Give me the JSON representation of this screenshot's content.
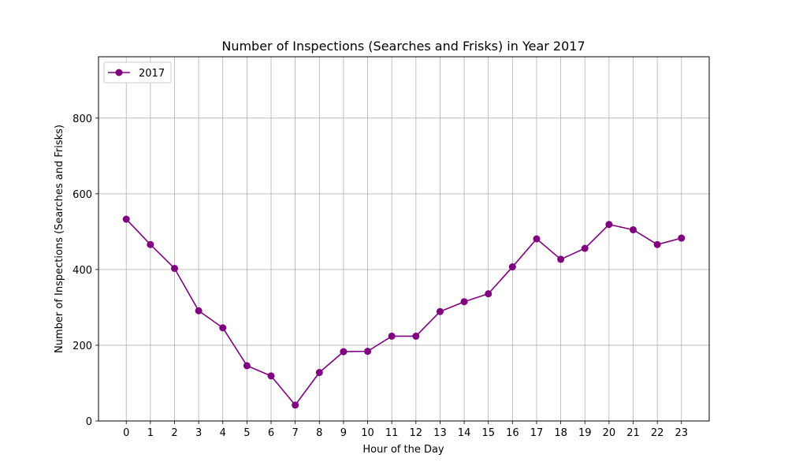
{
  "chart_data": {
    "type": "line",
    "title": "Number of Inspections (Searches and Frisks) in Year 2017",
    "xlabel": "Hour of the Day",
    "ylabel": "Number of Inspections (Searches and Frisks)",
    "x": [
      0,
      1,
      2,
      3,
      4,
      5,
      6,
      7,
      8,
      9,
      10,
      11,
      12,
      13,
      14,
      15,
      16,
      17,
      18,
      19,
      20,
      21,
      22,
      23
    ],
    "series": [
      {
        "name": "2017",
        "color": "#800080",
        "marker": "circle",
        "values": [
          533,
          466,
          403,
          291,
          246,
          146,
          119,
          42,
          128,
          183,
          184,
          224,
          224,
          289,
          315,
          336,
          407,
          481,
          427,
          456,
          519,
          505,
          466,
          483
        ]
      }
    ],
    "xlim": [
      -1.15,
      24.15
    ],
    "ylim": [
      0,
      962
    ],
    "yticks": [
      0,
      200,
      400,
      600,
      800
    ],
    "grid": true,
    "legend_position": "top-left"
  }
}
